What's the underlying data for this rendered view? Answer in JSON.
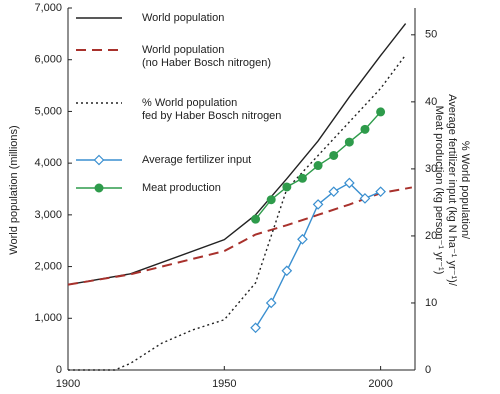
{
  "chart_data": {
    "type": "line",
    "x_label": null,
    "y_label": "World population (millions)",
    "y2_label": "% World population/\nAverage fertilizer input (kg N ha⁻¹ yr⁻¹)/\nMeat production (kg person⁻¹ yr⁻¹)",
    "xlim": [
      1900,
      2011
    ],
    "xticks": [
      1900,
      1950,
      2000
    ],
    "ylim": [
      0,
      7000
    ],
    "yticks": [
      0,
      {
        "value": 1000,
        "label": "1,000"
      },
      {
        "value": 2000,
        "label": "2,000"
      },
      {
        "value": 3000,
        "label": "3,000"
      },
      {
        "value": 4000,
        "label": "4,000"
      },
      {
        "value": 5000,
        "label": "5,000"
      },
      {
        "value": 6000,
        "label": "6,000"
      },
      {
        "value": 7000,
        "label": "7,000"
      }
    ],
    "y2lim": [
      0,
      54
    ],
    "y2ticks": [
      0,
      10,
      20,
      30,
      40,
      50
    ],
    "series": [
      {
        "name": "World population",
        "color": "#222222",
        "dash": "solid",
        "marker": "none",
        "x": [
          1900,
          1920,
          1950,
          1960,
          1970,
          1980,
          1990,
          2000,
          2008
        ],
        "values": [
          1650,
          1860,
          2520,
          3000,
          3700,
          4430,
          5280,
          6080,
          6700
        ]
      },
      {
        "name": "World population\n(no Haber Bosch nitrogen)",
        "color": "#a8312c",
        "dash": "dashed",
        "marker": "none",
        "x": [
          1900,
          1920,
          1940,
          1950,
          1960,
          1970,
          1980,
          1990,
          2000,
          2010
        ],
        "values": [
          1650,
          1850,
          2150,
          2300,
          2620,
          2800,
          3000,
          3200,
          3420,
          3530
        ]
      },
      {
        "name": "% World population\nfed by Haber Bosch nitrogen",
        "color": "#222222",
        "dash": "dotted",
        "marker": "none",
        "axis": "y2",
        "x": [
          1900,
          1915,
          1920,
          1930,
          1940,
          1950,
          1960,
          1965,
          1970,
          1980,
          1990,
          2000,
          2008
        ],
        "values": [
          0,
          0,
          1,
          4,
          6,
          7.5,
          13,
          20,
          27,
          32,
          37,
          42,
          47
        ]
      },
      {
        "name": "Average fertilizer input",
        "color": "#3a8fd0",
        "dash": "solid",
        "marker": "diamond",
        "axis": "y2",
        "x": [
          1960,
          1965,
          1970,
          1975,
          1980,
          1985,
          1990,
          1995,
          2000
        ],
        "values": [
          6.3,
          10,
          14.8,
          19.5,
          24.7,
          26.6,
          27.9,
          25.6,
          26.6
        ]
      },
      {
        "name": "Meat production",
        "color": "#2e9b4b",
        "dash": "solid",
        "marker": "circle",
        "axis": "y2",
        "x": [
          1960,
          1965,
          1970,
          1975,
          1980,
          1985,
          1990,
          1995,
          2000
        ],
        "values": [
          22.5,
          25.4,
          27.3,
          28.6,
          30.5,
          32,
          34,
          35.9,
          38.5
        ]
      }
    ]
  }
}
